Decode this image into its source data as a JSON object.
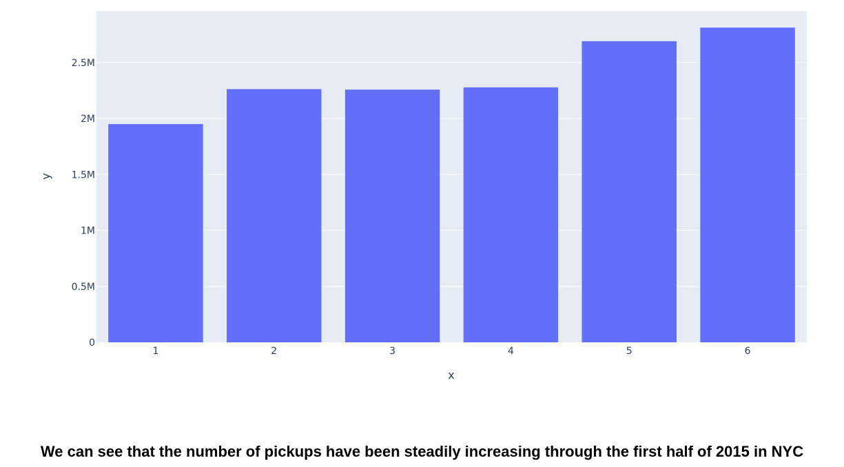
{
  "chart_data": {
    "type": "bar",
    "categories": [
      "1",
      "2",
      "3",
      "4",
      "5",
      "6"
    ],
    "values": [
      1950000,
      2262000,
      2258000,
      2278000,
      2690000,
      2812000
    ],
    "title": "",
    "xlabel": "x",
    "ylabel": "y",
    "ylim": [
      0,
      2960000
    ],
    "yticks": [
      {
        "value": 0,
        "label": "0"
      },
      {
        "value": 500000,
        "label": "0.5M"
      },
      {
        "value": 1000000,
        "label": "1M"
      },
      {
        "value": 1500000,
        "label": "1.5M"
      },
      {
        "value": 2000000,
        "label": "2M"
      },
      {
        "value": 2500000,
        "label": "2.5M"
      }
    ],
    "grid": true,
    "colors": {
      "bar": "#636efa",
      "plot_bg": "#e5ecf6",
      "grid": "#ffffff",
      "text": "#2a3f5f"
    }
  },
  "caption": "We can see that the number of pickups have been steadily increasing through the first half of 2015 in NYC"
}
